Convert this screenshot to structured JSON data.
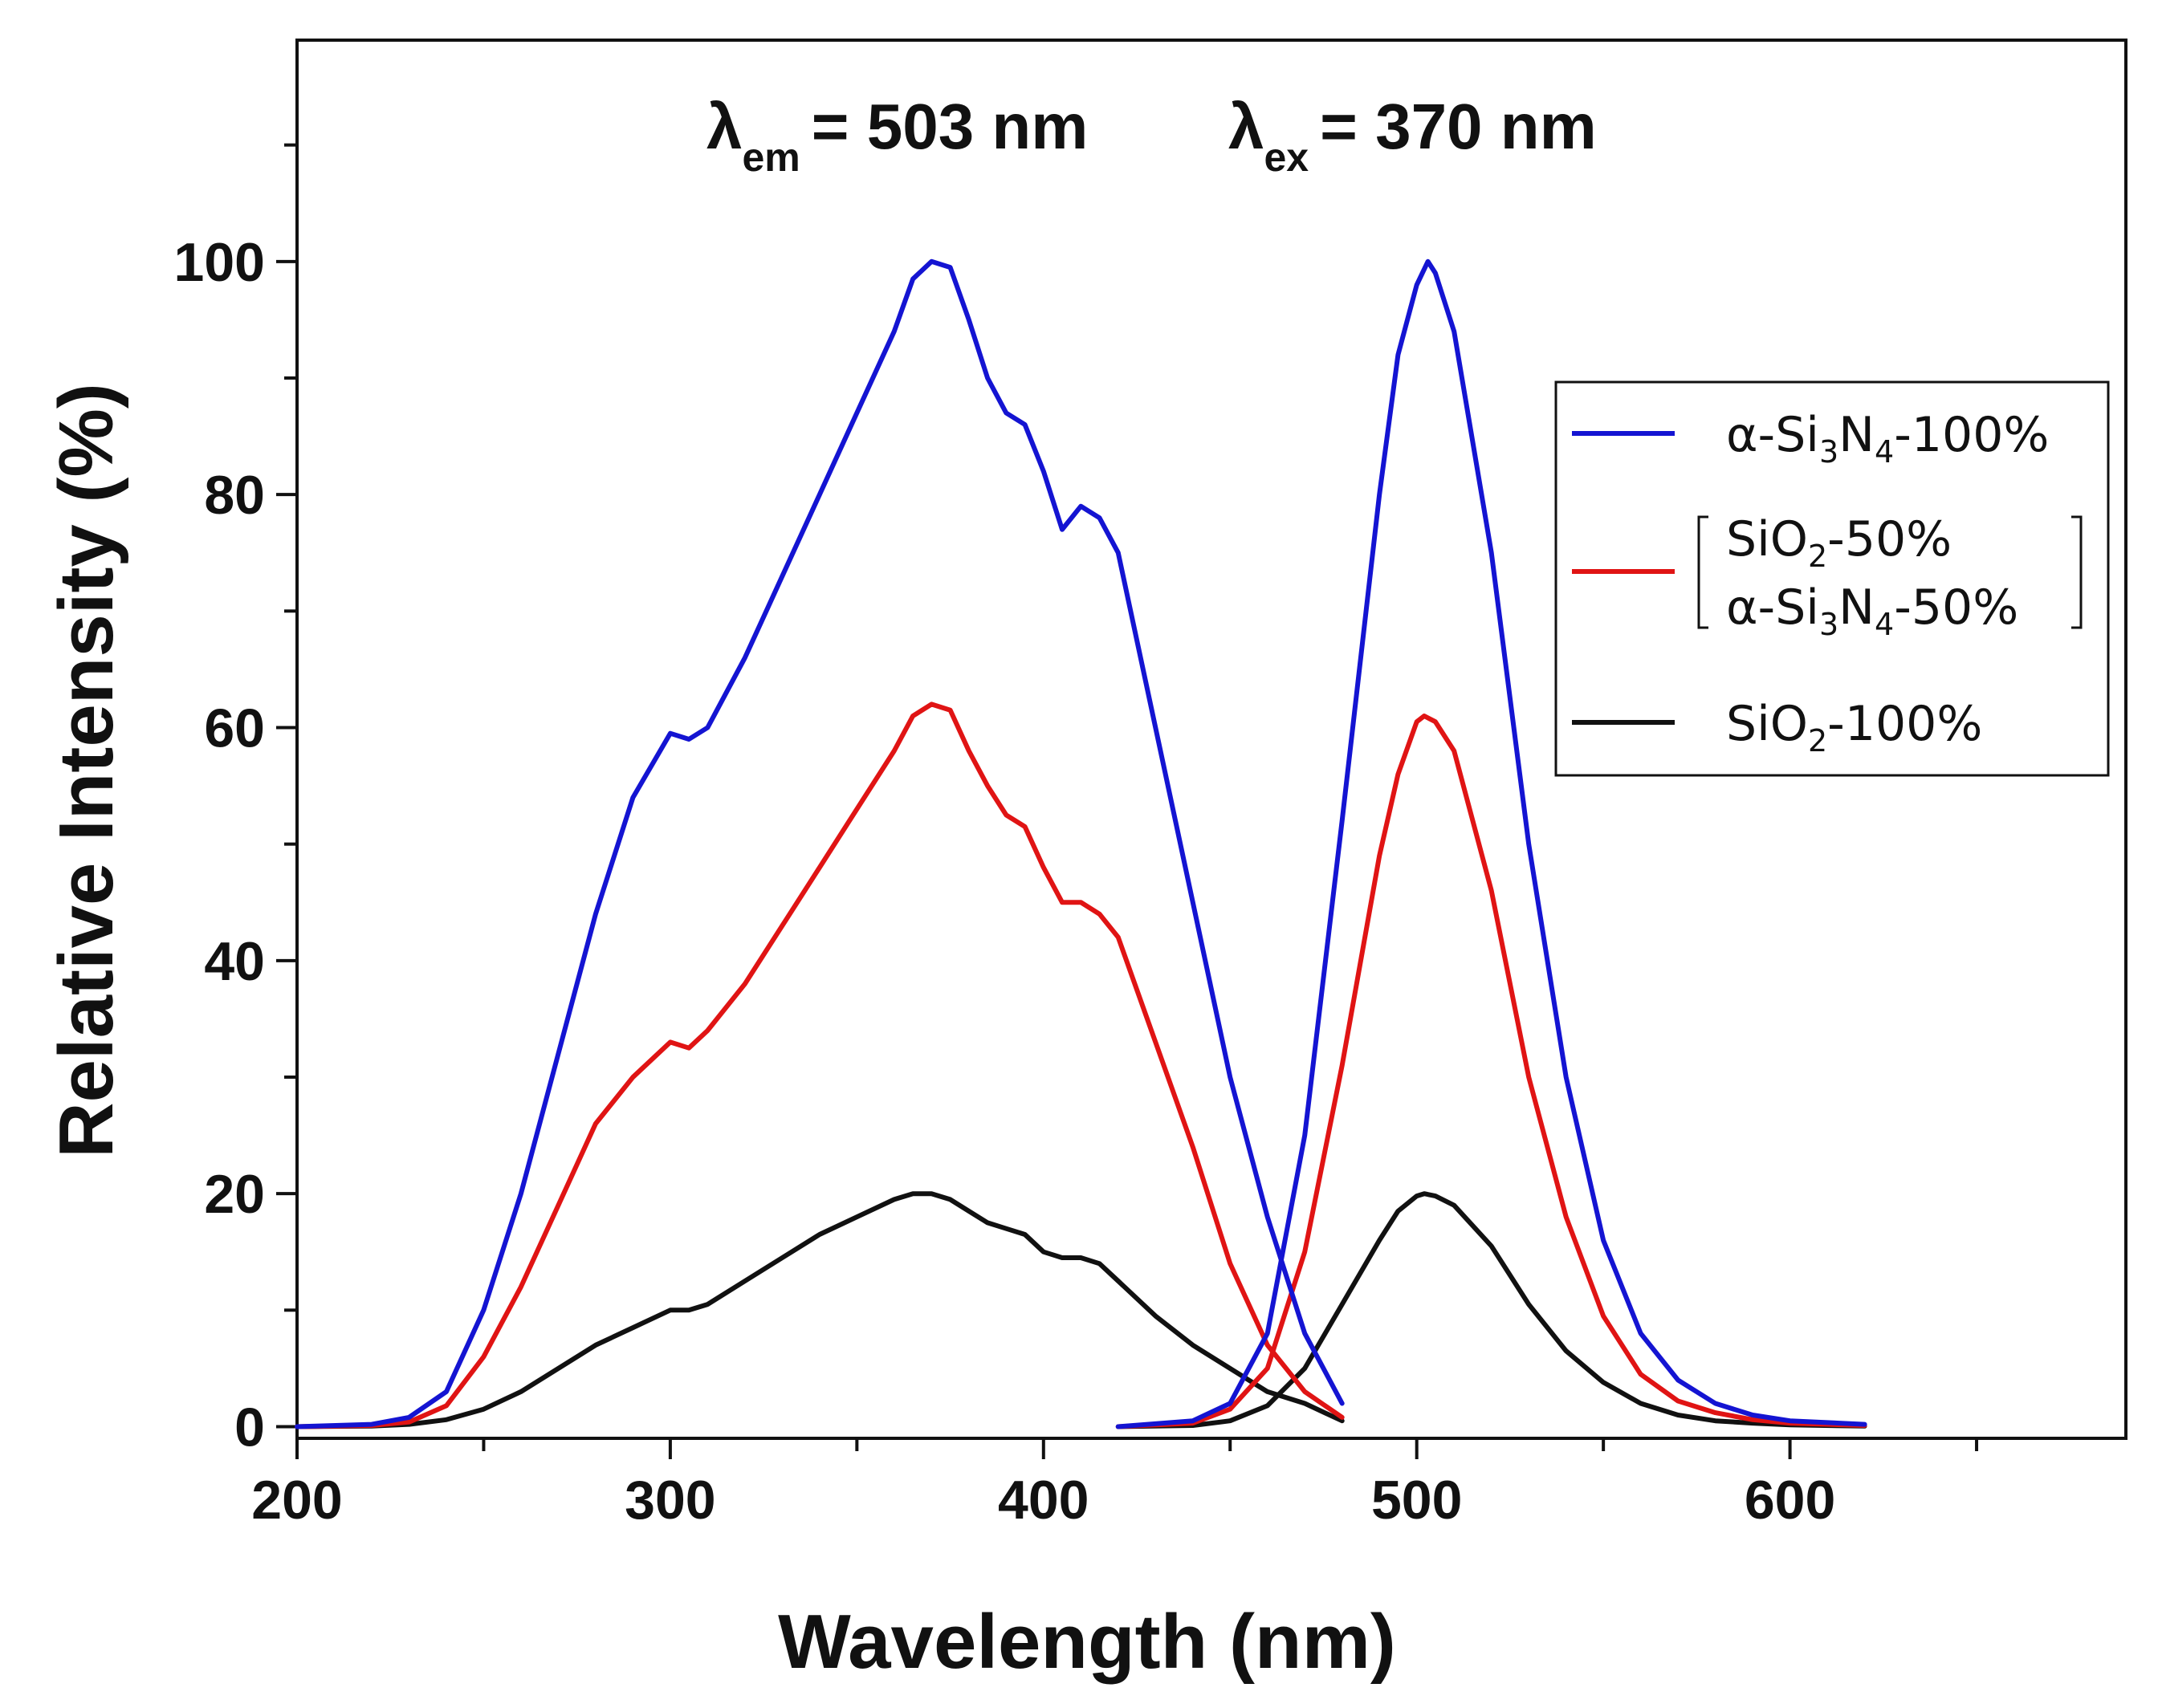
{
  "chart_data": {
    "type": "line",
    "xlabel": "Wavelength (nm)",
    "ylabel": "Relative Intensity (%)",
    "xlim": [
      200,
      690
    ],
    "ylim": [
      -1,
      119
    ],
    "x_ticks": [
      200,
      300,
      400,
      500,
      600
    ],
    "x_tick_labels": [
      "200",
      "300",
      "400",
      "500",
      "600"
    ],
    "y_ticks": [
      0,
      20,
      40,
      60,
      80,
      100
    ],
    "y_tick_labels": [
      "0",
      "20",
      "40",
      "60",
      "80",
      "100"
    ],
    "annotations": [
      {
        "symbol": "λ",
        "sub": "em",
        "text": "= 503 nm"
      },
      {
        "symbol": "λ",
        "sub": "ex",
        "text": "= 370 nm"
      }
    ],
    "legend": {
      "items": [
        {
          "id": "si3n4",
          "lines": [
            [
              [
                "α-Si",
                ""
              ],
              [
                "3",
                "sub"
              ],
              [
                "N",
                ""
              ],
              [
                "4",
                "sub"
              ],
              [
                "-100%",
                ""
              ]
            ]
          ]
        },
        {
          "id": "mix",
          "bracket": true,
          "lines": [
            [
              [
                "SiO",
                ""
              ],
              [
                "2",
                "sub"
              ],
              [
                "-50%",
                ""
              ]
            ],
            [
              [
                "α-Si",
                ""
              ],
              [
                "3",
                "sub"
              ],
              [
                "N",
                ""
              ],
              [
                "4",
                "sub"
              ],
              [
                "-50%",
                ""
              ]
            ]
          ]
        },
        {
          "id": "sio2",
          "lines": [
            [
              [
                "SiO",
                ""
              ],
              [
                "2",
                "sub"
              ],
              [
                "-100%",
                ""
              ]
            ]
          ]
        }
      ]
    },
    "series": [
      {
        "id": "si3n4",
        "name": "α-Si3N4-100%",
        "color": "#1414d2",
        "excitation": {
          "x": [
            200,
            220,
            230,
            240,
            250,
            260,
            270,
            280,
            290,
            300,
            305,
            310,
            320,
            330,
            340,
            350,
            360,
            365,
            370,
            375,
            380,
            385,
            390,
            395,
            400,
            405,
            410,
            415,
            420,
            430,
            440,
            450,
            460,
            470,
            480
          ],
          "y": [
            0,
            0.2,
            0.8,
            3,
            10,
            20,
            32,
            44,
            54,
            59.5,
            59,
            60,
            66,
            73,
            80,
            87,
            94,
            98.5,
            100,
            99.5,
            95,
            90,
            87,
            86,
            82,
            77,
            79,
            78,
            75,
            60,
            45,
            30,
            18,
            8,
            2
          ]
        },
        "emission": {
          "x": [
            420,
            440,
            450,
            460,
            470,
            480,
            490,
            495,
            500,
            503,
            505,
            510,
            520,
            530,
            540,
            550,
            560,
            570,
            580,
            590,
            600,
            620
          ],
          "y": [
            0,
            0.5,
            2,
            8,
            25,
            52,
            80,
            92,
            98,
            100,
            99,
            94,
            75,
            50,
            30,
            16,
            8,
            4,
            2,
            1,
            0.5,
            0.2
          ]
        }
      },
      {
        "id": "mix",
        "name": "SiO2-50% / α-Si3N4-50%",
        "color": "#e01414",
        "excitation": {
          "x": [
            200,
            220,
            230,
            240,
            250,
            260,
            270,
            280,
            290,
            300,
            305,
            310,
            320,
            330,
            340,
            350,
            360,
            365,
            370,
            375,
            380,
            385,
            390,
            395,
            400,
            405,
            410,
            415,
            420,
            430,
            440,
            450,
            460,
            470,
            480
          ],
          "y": [
            0,
            0.1,
            0.4,
            1.8,
            6,
            12,
            19,
            26,
            30,
            33,
            32.5,
            34,
            38,
            43,
            48,
            53,
            58,
            61,
            62,
            61.5,
            58,
            55,
            52.5,
            51.5,
            48,
            45,
            45,
            44,
            42,
            33,
            24,
            14,
            7,
            3,
            0.8
          ]
        },
        "emission": {
          "x": [
            420,
            440,
            450,
            460,
            470,
            480,
            490,
            495,
            500,
            502,
            505,
            510,
            520,
            530,
            540,
            550,
            560,
            570,
            580,
            590,
            600,
            620
          ],
          "y": [
            0,
            0.3,
            1.5,
            5,
            15,
            31,
            49,
            56,
            60.5,
            61,
            60.5,
            58,
            46,
            30,
            18,
            9.5,
            4.5,
            2.2,
            1.2,
            0.6,
            0.3,
            0.1
          ]
        }
      },
      {
        "id": "sio2",
        "name": "SiO2-100%",
        "color": "#111111",
        "excitation": {
          "x": [
            200,
            220,
            230,
            240,
            250,
            260,
            270,
            280,
            290,
            300,
            305,
            310,
            320,
            330,
            340,
            350,
            360,
            365,
            370,
            375,
            380,
            385,
            390,
            395,
            400,
            405,
            410,
            415,
            420,
            430,
            440,
            450,
            460,
            470,
            480
          ],
          "y": [
            0,
            0.05,
            0.2,
            0.6,
            1.5,
            3,
            5,
            7,
            8.5,
            10,
            10,
            10.5,
            12.5,
            14.5,
            16.5,
            18,
            19.5,
            20,
            20,
            19.5,
            18.5,
            17.5,
            17,
            16.5,
            15,
            14.5,
            14.5,
            14,
            12.5,
            9.5,
            7,
            5,
            3,
            2,
            0.5
          ]
        },
        "emission": {
          "x": [
            420,
            440,
            450,
            460,
            470,
            480,
            490,
            495,
            500,
            502,
            505,
            510,
            520,
            530,
            540,
            550,
            560,
            570,
            580,
            590,
            600,
            620
          ],
          "y": [
            0,
            0.1,
            0.5,
            1.8,
            5,
            10.5,
            16,
            18.5,
            19.8,
            20,
            19.8,
            19,
            15.5,
            10.5,
            6.5,
            3.8,
            2,
            1,
            0.5,
            0.3,
            0.15,
            0.05
          ]
        }
      }
    ]
  }
}
